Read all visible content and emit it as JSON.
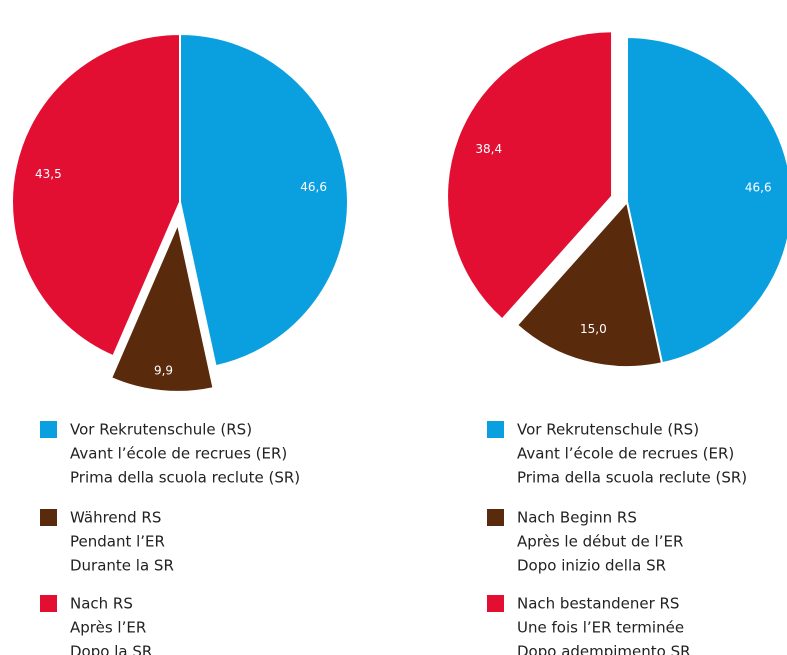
{
  "chart_data": [
    {
      "type": "pie",
      "categories": [
        [
          "Vor Rekrutenschule (RS)",
          "Avant l’école de recrues (ER)",
          "Prima della scuola reclute (SR)"
        ],
        [
          "Während RS",
          "Pendant l’ER",
          "Durante la SR"
        ],
        [
          "Nach RS",
          "Après l’ER",
          "Dopo la SR"
        ]
      ],
      "values": [
        46.6,
        9.9,
        43.5
      ],
      "value_labels": [
        "46,6",
        "9,9",
        "43,5"
      ],
      "colors": [
        "#0aa0e0",
        "#5a2a0c",
        "#e20f32"
      ],
      "exploded": 1
    },
    {
      "type": "pie",
      "categories": [
        [
          "Vor Rekrutenschule (RS)",
          "Avant l’école de recrues (ER)",
          "Prima della scuola reclute (SR)"
        ],
        [
          "Nach Beginn RS",
          "Après le début de l’ER",
          "Dopo inizio della SR"
        ],
        [
          "Nach bestandener RS",
          "Une fois l’ER terminée",
          "Dopo adempimento SR"
        ]
      ],
      "values": [
        46.6,
        15.0,
        38.4
      ],
      "value_labels": [
        "46,6",
        "15,0",
        "38,4"
      ],
      "colors": [
        "#0aa0e0",
        "#5a2a0c",
        "#e20f32"
      ],
      "exploded": 2
    }
  ]
}
